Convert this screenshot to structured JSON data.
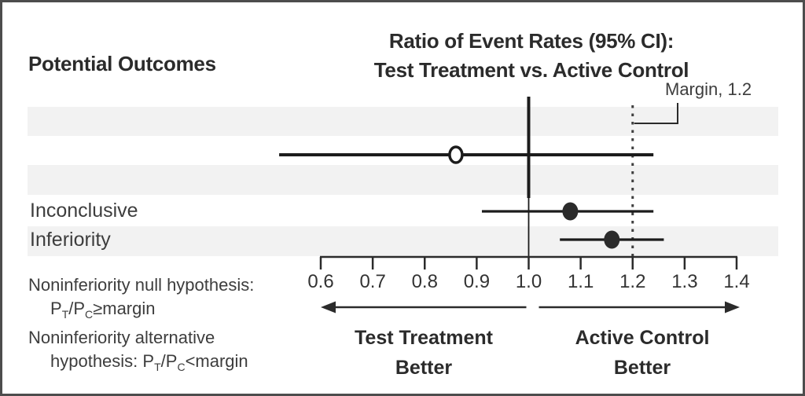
{
  "header": {
    "column_label": "Potential Outcomes",
    "title_line1": "Ratio of Event Rates (95% CI):",
    "title_line2": "Test Treatment vs. Active Control"
  },
  "chart_data": {
    "type": "forest",
    "title": "Ratio of Event Rates (95% CI): Test Treatment vs. Active Control",
    "x_ticks": [
      0.6,
      0.7,
      0.8,
      0.9,
      1.0,
      1.1,
      1.2,
      1.3,
      1.4
    ],
    "x_range": [
      0.6,
      1.4
    ],
    "grid": "off",
    "reference_value": 1.0,
    "margin": {
      "value": 1.2,
      "label": "Margin, 1.2",
      "line_style": "dotted"
    },
    "rows": [
      {
        "label": "",
        "estimate": 0.86,
        "ci": [
          0.52,
          1.24
        ],
        "marker": "open-circle"
      },
      {
        "label": "Inconclusive",
        "estimate": 1.08,
        "ci": [
          0.91,
          1.24
        ],
        "marker": "filled-circle"
      },
      {
        "label": "Inferiority",
        "estimate": 1.16,
        "ci": [
          1.06,
          1.26
        ],
        "marker": "filled-circle"
      }
    ],
    "direction_labels": {
      "left_line1": "Test Treatment",
      "left_line2": "Better",
      "right_line1": "Active Control",
      "right_line2": "Better"
    }
  },
  "hypotheses": {
    "line1": "Noninferiority null hypothesis:",
    "line2_html": "P<sub>T</sub>/P<sub>C</sub>≥margin",
    "line3": "Noninferiority alternative",
    "line4_html": "hypothesis: P<sub>T</sub>/P<sub>C</sub>&lt;margin"
  },
  "colors": {
    "ink": "#1c1c1c",
    "text": "#2b2b2b",
    "muted_text": "#3d3d3d",
    "stripe": "#f2f2f2",
    "border": "#4d4d4d"
  }
}
